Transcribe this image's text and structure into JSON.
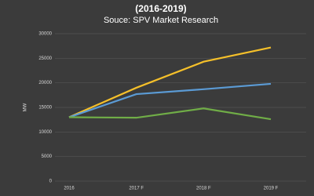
{
  "chart_data": {
    "type": "line",
    "title": "(2016-2019)",
    "subtitle": "Souce: SPV Market Research",
    "y_label": "MW",
    "categories": [
      "2016",
      "2017 F",
      "2018 F",
      "2019 F"
    ],
    "series": [
      {
        "color": "#f5c02a",
        "values": [
          13000,
          19000,
          24300,
          27200
        ]
      },
      {
        "color": "#5b9bd5",
        "values": [
          13000,
          17700,
          18700,
          19800
        ]
      },
      {
        "color": "#70ad47",
        "values": [
          13000,
          12900,
          14800,
          12600
        ]
      }
    ],
    "ylim": [
      0,
      30000
    ],
    "yticks": [
      0,
      5000,
      10000,
      15000,
      20000,
      25000,
      30000
    ],
    "grid": true
  }
}
